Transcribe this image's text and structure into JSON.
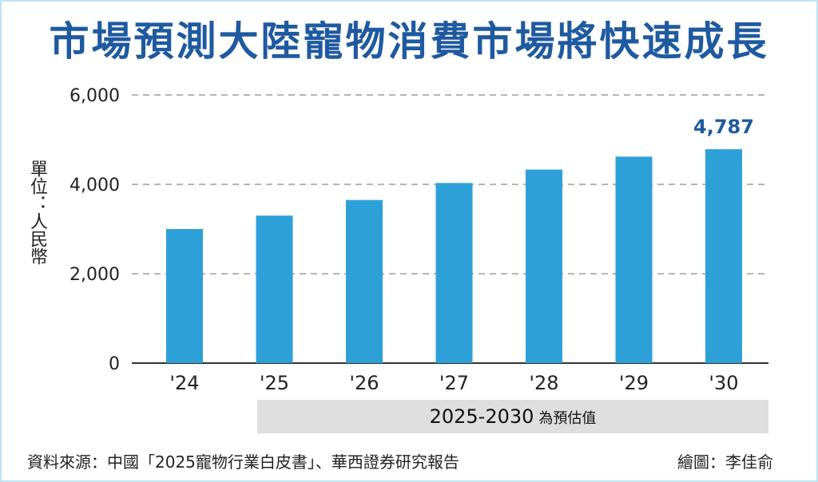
{
  "chart_data": {
    "type": "bar",
    "title": "市場預測大陸寵物消費市場將快速成長",
    "ylabel": "單位：人民幣",
    "categories": [
      "'24",
      "'25",
      "'26",
      "'27",
      "'28",
      "'29",
      "'30"
    ],
    "values": [
      3000,
      3300,
      3650,
      4030,
      4330,
      4620,
      4787
    ],
    "ylim": [
      0,
      6000
    ],
    "yticks": [
      0,
      2000,
      4000,
      6000
    ],
    "ytick_labels": [
      "0",
      "2,000",
      "4,000",
      "6,000"
    ],
    "grid": true,
    "highlight_label": "4,787",
    "bar_color": "#2ea0d8",
    "title_color": "#1f5aa0"
  },
  "forecast_band": {
    "years": "2025-2030",
    "text": "為預估值"
  },
  "footer": {
    "source": "資料來源：中國「2025寵物行業白皮書」、華西證券研究報告",
    "credit": "繪圖：李佳俞"
  }
}
